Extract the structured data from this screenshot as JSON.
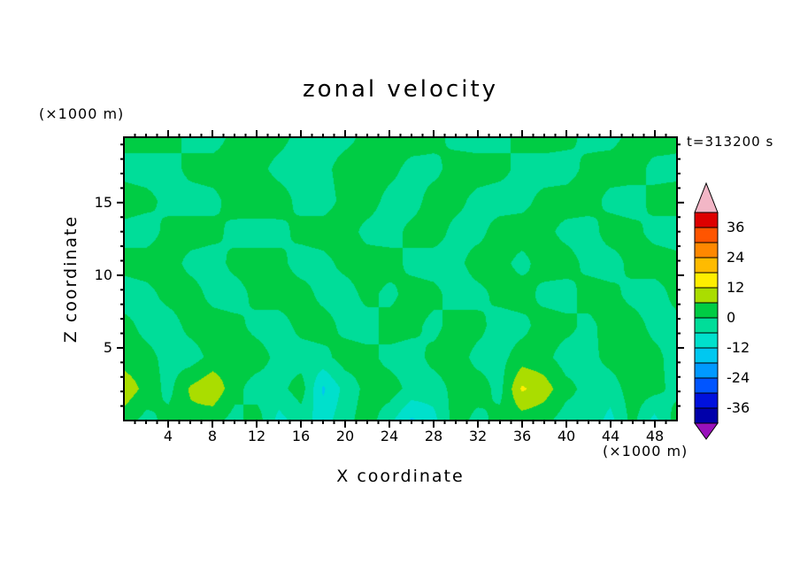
{
  "chart_data": {
    "type": "heatmap",
    "title": "zonal velocity",
    "xlabel": "X coordinate",
    "ylabel": "Z coordinate",
    "x_unit_label": "(×1000 m)",
    "y_unit_label": "(×1000 m)",
    "timestamp_label": "t=313200 s",
    "xlim": [
      0,
      50
    ],
    "ylim": [
      0,
      19.5
    ],
    "x_ticks": [
      4,
      8,
      12,
      16,
      20,
      24,
      28,
      32,
      36,
      40,
      44,
      48
    ],
    "x_minor_step": 1,
    "y_ticks": [
      5,
      10,
      15
    ],
    "y_minor_step": 1,
    "grid_lines": false,
    "colorbar": {
      "band_size": 6,
      "labels": [
        "36",
        "24",
        "12",
        "0",
        "-12",
        "-24",
        "-36"
      ],
      "over_color": "#f2b6c6",
      "under_color": "#9911bb",
      "bands": [
        {
          "min": 36,
          "max": 42,
          "color": "#dd0000"
        },
        {
          "min": 30,
          "max": 36,
          "color": "#ff5500"
        },
        {
          "min": 24,
          "max": 30,
          "color": "#ff8800"
        },
        {
          "min": 18,
          "max": 24,
          "color": "#ffbb00"
        },
        {
          "min": 12,
          "max": 18,
          "color": "#ffee00"
        },
        {
          "min": 6,
          "max": 12,
          "color": "#aadd00"
        },
        {
          "min": 0,
          "max": 6,
          "color": "#00cc44"
        },
        {
          "min": -6,
          "max": 0,
          "color": "#00dd99"
        },
        {
          "min": -12,
          "max": -6,
          "color": "#00e0cc"
        },
        {
          "min": -18,
          "max": -12,
          "color": "#00c8f0"
        },
        {
          "min": -24,
          "max": -18,
          "color": "#0099ff"
        },
        {
          "min": -30,
          "max": -24,
          "color": "#0055ff"
        },
        {
          "min": -36,
          "max": -30,
          "color": "#0011dd"
        },
        {
          "min": -42,
          "max": -36,
          "color": "#0000aa"
        }
      ]
    },
    "grid": {
      "x": [
        0,
        2,
        4,
        6,
        8,
        10,
        12,
        14,
        16,
        18,
        20,
        22,
        24,
        26,
        28,
        30,
        32,
        34,
        36,
        38,
        40,
        42,
        44,
        46,
        48,
        50
      ],
      "z": [
        19.5,
        17.3,
        15.1,
        13.0,
        10.8,
        8.7,
        6.5,
        4.3,
        2.2,
        0.0
      ],
      "values": [
        [
          2,
          3,
          3,
          -2,
          -3,
          2,
          3,
          2,
          -2,
          -3,
          -2,
          2,
          3,
          3,
          2,
          -2,
          -3,
          -2,
          2,
          3,
          2,
          -2,
          -2,
          2,
          3,
          2
        ],
        [
          -2,
          -3,
          -3,
          2,
          3,
          3,
          2,
          -2,
          -3,
          -2,
          3,
          3,
          2,
          -2,
          -2,
          3,
          3,
          2,
          -2,
          -3,
          -3,
          2,
          3,
          3,
          -2,
          -2
        ],
        [
          3,
          2,
          -2,
          -3,
          -2,
          3,
          4,
          3,
          -2,
          -3,
          2,
          3,
          -2,
          -3,
          3,
          2,
          -2,
          -3,
          -2,
          2,
          3,
          3,
          -2,
          -3,
          2,
          3
        ],
        [
          -2,
          -3,
          2,
          3,
          2,
          -2,
          -3,
          -2,
          2,
          3,
          3,
          -2,
          -3,
          2,
          3,
          -2,
          -2,
          3,
          3,
          2,
          -2,
          -3,
          3,
          2,
          -2,
          -3
        ],
        [
          2,
          3,
          3,
          -2,
          -3,
          2,
          3,
          2,
          -3,
          -2,
          2,
          3,
          3,
          -2,
          -3,
          -2,
          3,
          2,
          -2,
          3,
          3,
          -2,
          -3,
          2,
          3,
          2
        ],
        [
          -3,
          -2,
          2,
          3,
          -2,
          -3,
          2,
          3,
          3,
          -2,
          -3,
          2,
          -2,
          3,
          2,
          -3,
          -2,
          2,
          3,
          -2,
          -3,
          3,
          2,
          -2,
          -3,
          2
        ],
        [
          2,
          -2,
          -3,
          2,
          3,
          2,
          -2,
          -3,
          2,
          3,
          -2,
          -3,
          3,
          2,
          -2,
          3,
          2,
          -3,
          -2,
          3,
          2,
          -2,
          3,
          3,
          -2,
          -2
        ],
        [
          3,
          2,
          -2,
          -3,
          2,
          3,
          3,
          -2,
          -3,
          -2,
          3,
          2,
          -2,
          -3,
          2,
          3,
          -2,
          -2,
          3,
          2,
          -3,
          -2,
          2,
          3,
          2,
          -3
        ],
        [
          10,
          4,
          -2,
          7,
          11,
          2,
          -3,
          -2,
          3,
          -13,
          -4,
          2,
          3,
          -2,
          -3,
          2,
          3,
          -2,
          13,
          9,
          2,
          -2,
          -3,
          3,
          2,
          -2
        ],
        [
          3,
          -2,
          2,
          4,
          2,
          -2,
          3,
          -8,
          -3,
          -9,
          -2,
          3,
          -4,
          -13,
          -8,
          3,
          -2,
          2,
          3,
          2,
          -3,
          -2,
          -8,
          2,
          -8,
          3
        ]
      ]
    }
  }
}
